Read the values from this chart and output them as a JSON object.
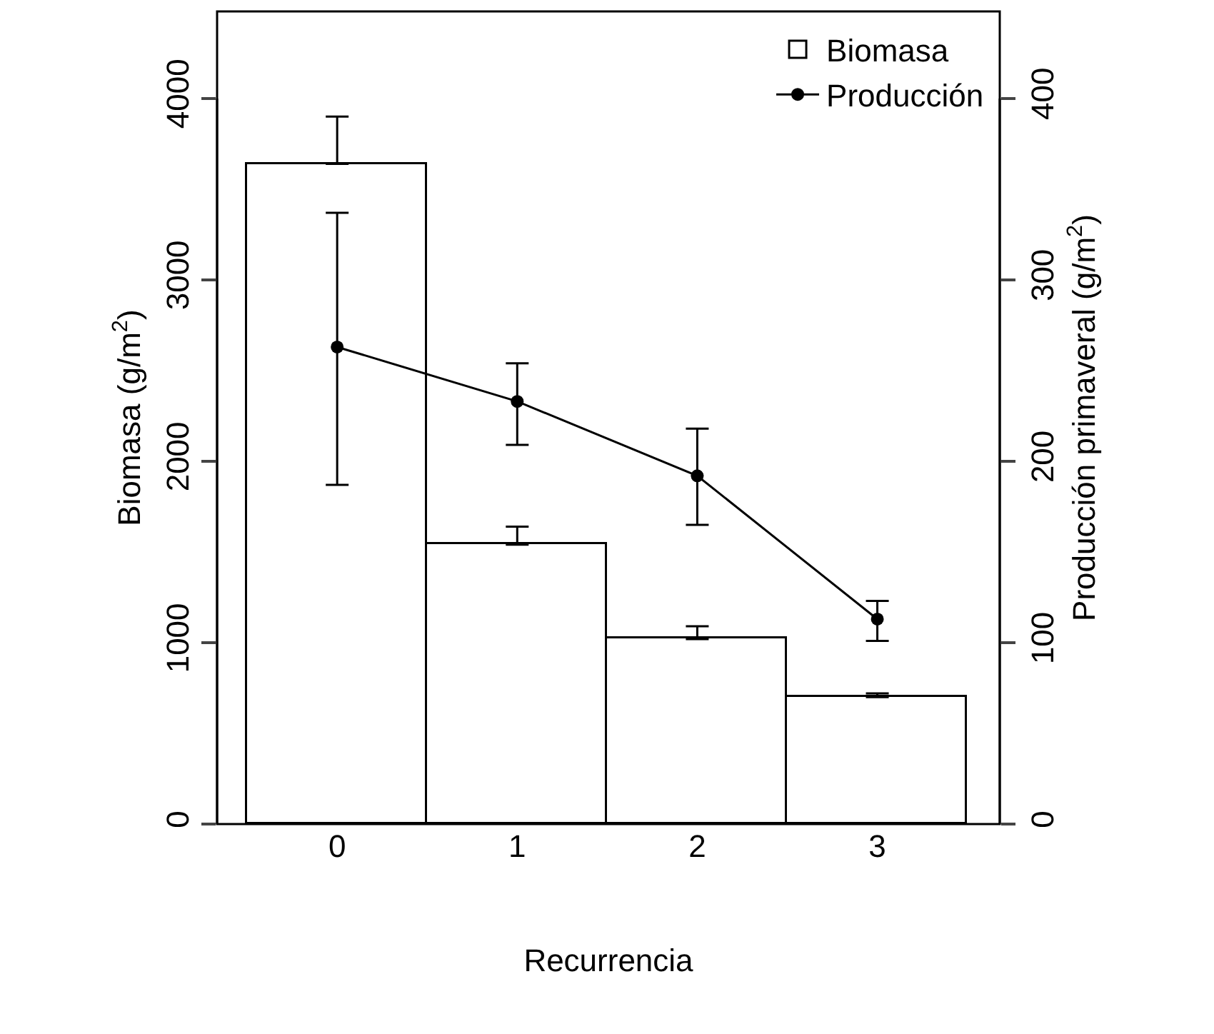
{
  "chart_data": {
    "type": "bar",
    "xlabel": "Recurrencia",
    "ylabel": "Biomasa (g/m$^{2}$)",
    "y2label": "Producción primaveral (g/m$^{2}$)",
    "categories": [
      "0",
      "1",
      "2",
      "3"
    ],
    "ylim": [
      0,
      4480
    ],
    "yticks": [
      0,
      1000,
      2000,
      3000,
      4000
    ],
    "y2lim": [
      0,
      448
    ],
    "y2ticks": [
      0,
      100,
      200,
      300,
      400
    ],
    "legend": "top right",
    "grid": false,
    "series": [
      {
        "name": "Biomasa",
        "color": "#ffffff",
        "values": [
          3640,
          1540,
          1020,
          700
        ],
        "errors": [
          [
            3640,
            3900
          ],
          [
            1540,
            1640
          ],
          [
            1020,
            1090
          ],
          [
            700,
            720
          ]
        ]
      },
      {
        "name": "Producción",
        "type": "line",
        "axis": "y2",
        "color": "#000000",
        "marker": "circle",
        "line_style": "solid",
        "values": [
          263,
          233,
          192,
          113
        ],
        "errors": [
          [
            187,
            337
          ],
          [
            209,
            254
          ],
          [
            165,
            218
          ],
          [
            101,
            123
          ]
        ]
      }
    ]
  }
}
